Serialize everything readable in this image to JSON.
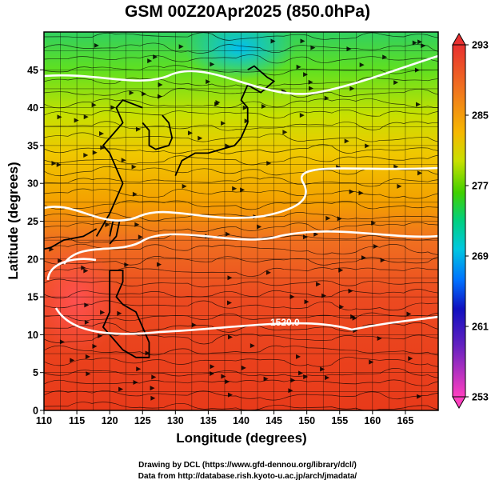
{
  "title": "GSM 00Z20Apr2025 (850.0hPa)",
  "map": {
    "lon_range": [
      110,
      170
    ],
    "lat_range": [
      0,
      50
    ],
    "x_ticks": [
      110,
      115,
      120,
      125,
      130,
      135,
      140,
      145,
      150,
      155,
      160,
      165
    ],
    "y_ticks": [
      0,
      5,
      10,
      15,
      20,
      25,
      30,
      35,
      40,
      45
    ],
    "xlabel": "Longitude (degrees)",
    "ylabel": "Latitude  (degrees)",
    "grid": true,
    "contour_labels": [
      "1520.0"
    ],
    "field_description": "temperature shading with streamlines and geopotential height contours"
  },
  "colorbar": {
    "ticks": [
      "293",
      "285",
      "277",
      "269",
      "261",
      "253"
    ],
    "colors": [
      "#e83030",
      "#f06a1a",
      "#f7b000",
      "#d8e000",
      "#39d000",
      "#00d090",
      "#00c0e0",
      "#0060ff",
      "#2000c0",
      "#a020c0",
      "#ff40c0"
    ]
  },
  "footer": {
    "line1": "Drawing by DCL (https://www.gfd-dennou.org/library/dcl/)",
    "line2": "Data from http://database.rish.kyoto-u.ac.jp/arch/jmadata/"
  }
}
